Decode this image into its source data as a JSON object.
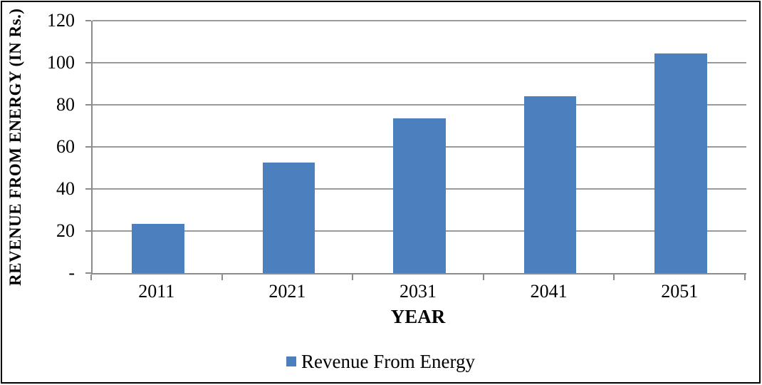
{
  "chart_data": {
    "type": "bar",
    "title": "",
    "categories": [
      "2011",
      "2021",
      "2031",
      "2041",
      "2051"
    ],
    "series": [
      {
        "name": "Revenue From Energy",
        "values": [
          23.5,
          52.5,
          73.5,
          84,
          104.5
        ]
      }
    ],
    "xlabel": "YEAR",
    "ylabel": "REVENUE FROM ENERGY (IN Rs.)",
    "ylim": [
      0,
      120
    ],
    "ytick_step": 20,
    "ytick_labels_bottom_to_top": [
      "-",
      "20",
      "40",
      "60",
      "80",
      "100",
      "120"
    ],
    "grid": true,
    "legend_position": "bottom-center",
    "colors": {
      "bar_fill": "#4C7FBE",
      "gridline": "#9A9A9A",
      "axis_line": "#8C8C8C",
      "text": "#000000",
      "frame_border": "#000000",
      "background": "#FFFFFF"
    }
  },
  "legend": {
    "label": "Revenue From Energy"
  }
}
